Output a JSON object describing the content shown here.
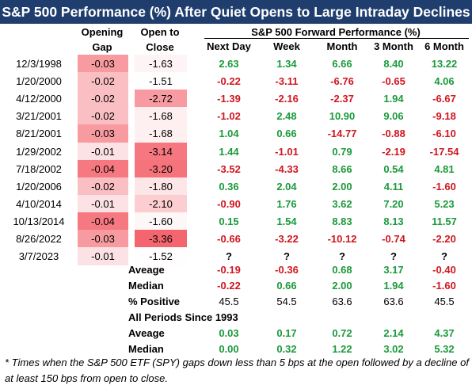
{
  "title": "S&P 500 Performance (%) After Quiet Opens to Large Intraday Declines",
  "headers": {
    "opening_gap": [
      "Opening",
      "Gap"
    ],
    "open_to_close": [
      "Open to",
      "Close"
    ],
    "forward_group": "S&P 500 Forward Performance (%)",
    "forward_cols": [
      "Next Day",
      "Week",
      "Month",
      "3 Month",
      "6 Month"
    ]
  },
  "colors": {
    "title_bg": "#1f3e6e",
    "positive": "#1a9a3a",
    "negative": "#d0161f"
  },
  "rows": [
    {
      "date": "12/3/1998",
      "gap": "-0.03",
      "oc": "-1.63",
      "fwd": [
        "2.63",
        "1.34",
        "6.66",
        "8.40",
        "13.22"
      ]
    },
    {
      "date": "1/20/2000",
      "gap": "-0.02",
      "oc": "-1.51",
      "fwd": [
        "-0.22",
        "-3.11",
        "-6.76",
        "-0.65",
        "4.06"
      ]
    },
    {
      "date": "4/12/2000",
      "gap": "-0.02",
      "oc": "-2.72",
      "fwd": [
        "-1.39",
        "-2.16",
        "-2.37",
        "1.94",
        "-6.67"
      ]
    },
    {
      "date": "3/21/2001",
      "gap": "-0.02",
      "oc": "-1.68",
      "fwd": [
        "-1.02",
        "2.48",
        "10.90",
        "9.06",
        "-9.18"
      ]
    },
    {
      "date": "8/21/2001",
      "gap": "-0.03",
      "oc": "-1.68",
      "fwd": [
        "1.04",
        "0.66",
        "-14.77",
        "-0.88",
        "-6.10"
      ]
    },
    {
      "date": "1/29/2002",
      "gap": "-0.01",
      "oc": "-3.14",
      "fwd": [
        "1.44",
        "-1.01",
        "0.79",
        "-2.19",
        "-17.54"
      ]
    },
    {
      "date": "7/18/2002",
      "gap": "-0.04",
      "oc": "-3.20",
      "fwd": [
        "-3.52",
        "-4.33",
        "8.66",
        "0.54",
        "4.81"
      ]
    },
    {
      "date": "1/20/2006",
      "gap": "-0.02",
      "oc": "-1.80",
      "fwd": [
        "0.36",
        "2.04",
        "2.00",
        "4.11",
        "-1.60"
      ]
    },
    {
      "date": "4/10/2014",
      "gap": "-0.01",
      "oc": "-2.10",
      "fwd": [
        "-0.90",
        "1.76",
        "3.62",
        "7.20",
        "5.23"
      ]
    },
    {
      "date": "10/13/2014",
      "gap": "-0.04",
      "oc": "-1.60",
      "fwd": [
        "0.15",
        "1.54",
        "8.83",
        "8.13",
        "11.57"
      ]
    },
    {
      "date": "8/26/2022",
      "gap": "-0.03",
      "oc": "-3.36",
      "fwd": [
        "-0.66",
        "-3.22",
        "-10.12",
        "-0.74",
        "-2.20"
      ]
    },
    {
      "date": "3/7/2023",
      "gap": "-0.01",
      "oc": "-1.52",
      "fwd": [
        "?",
        "?",
        "?",
        "?",
        "?"
      ]
    }
  ],
  "summary": [
    {
      "label": "Aveage",
      "values": [
        "-0.19",
        "-0.36",
        "0.68",
        "3.17",
        "-0.40"
      ],
      "colored": true
    },
    {
      "label": "Median",
      "values": [
        "-0.22",
        "0.66",
        "2.00",
        "1.94",
        "-1.60"
      ],
      "colored": true
    },
    {
      "label": "% Positive",
      "values": [
        "45.5",
        "54.5",
        "63.6",
        "63.6",
        "45.5"
      ],
      "colored": false
    }
  ],
  "all_periods": {
    "label": "All Periods Since 1993",
    "rows": [
      {
        "label": "Aveage",
        "values": [
          "0.03",
          "0.17",
          "0.72",
          "2.14",
          "4.37"
        ]
      },
      {
        "label": "Median",
        "values": [
          "0.00",
          "0.32",
          "1.22",
          "3.02",
          "5.32"
        ]
      }
    ]
  },
  "footnote": "* Times when the S&P 500 ETF (SPY) gaps down less than 5 bps at the open followed by a decline of at least 150 bps from open to close."
}
